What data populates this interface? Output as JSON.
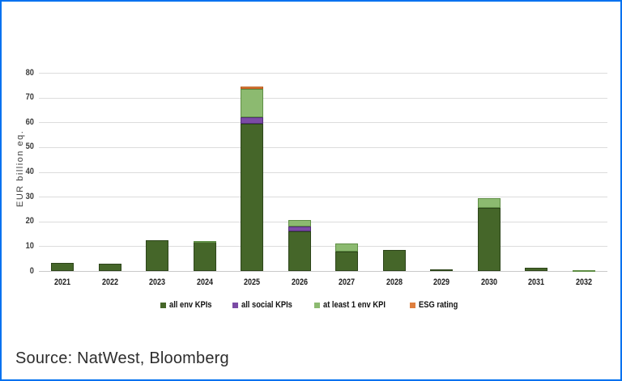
{
  "source_note": "Source: NatWest, Bloomberg",
  "colors": {
    "frame_border": "#0071f0",
    "gridline": "#dcdcdc"
  },
  "chart_data": {
    "type": "bar",
    "stacked": true,
    "title": "",
    "xlabel": "",
    "ylabel": "EUR billion eq.",
    "ylim": [
      0,
      80
    ],
    "yticks": [
      0,
      10,
      20,
      30,
      40,
      50,
      60,
      70,
      80
    ],
    "grid": true,
    "legend_position": "bottom",
    "categories": [
      "2021",
      "2022",
      "2023",
      "2024",
      "2025",
      "2026",
      "2027",
      "2028",
      "2029",
      "2030",
      "2031",
      "2032"
    ],
    "series": [
      {
        "name": "all env KPIs",
        "color": "#456629",
        "border_color": "#2d451a",
        "values": [
          3.4,
          3.1,
          12.5,
          11.8,
          59.5,
          16.0,
          8.0,
          8.5,
          0.8,
          25.5,
          1.4,
          0
        ]
      },
      {
        "name": "all social KPIs",
        "color": "#7b4ba5",
        "border_color": "#522e78",
        "values": [
          0,
          0,
          0,
          0,
          2.5,
          2.0,
          0,
          0,
          0,
          0,
          0,
          0
        ]
      },
      {
        "name": "at least 1 env KPI",
        "color": "#8cba70",
        "border_color": "#5f8e45",
        "values": [
          0,
          0,
          0,
          0.3,
          11.5,
          2.5,
          3.0,
          0,
          0,
          4.0,
          0,
          0.4
        ]
      },
      {
        "name": "ESG rating",
        "color": "#df7f3e",
        "border_color": "#b85c1e",
        "values": [
          0,
          0,
          0,
          0,
          1.0,
          0,
          0,
          0,
          0,
          0,
          0,
          0
        ]
      }
    ]
  }
}
